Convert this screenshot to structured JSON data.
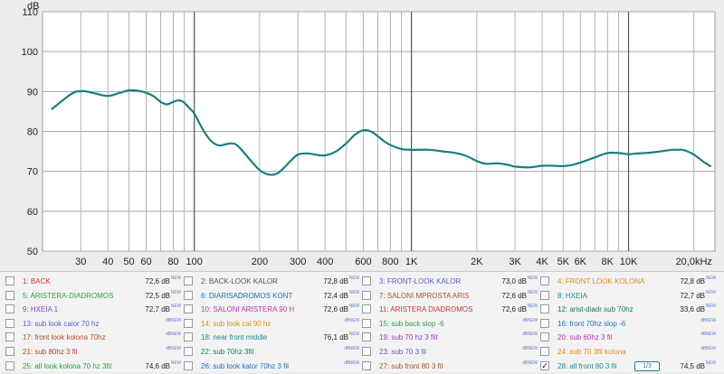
{
  "chart_data": {
    "type": "line",
    "y_unit_label": "dB",
    "x_scale": "log",
    "xlim": [
      20,
      25000
    ],
    "ylim": [
      50,
      110
    ],
    "y_ticks": [
      50,
      60,
      70,
      80,
      90,
      100,
      110
    ],
    "x_ticks": [
      {
        "value": 30,
        "label": "30"
      },
      {
        "value": 40,
        "label": "40"
      },
      {
        "value": 50,
        "label": "50"
      },
      {
        "value": 60,
        "label": "60"
      },
      {
        "value": 80,
        "label": "80"
      },
      {
        "value": 100,
        "label": "100"
      },
      {
        "value": 200,
        "label": "200"
      },
      {
        "value": 300,
        "label": "300"
      },
      {
        "value": 400,
        "label": "400"
      },
      {
        "value": 600,
        "label": "600"
      },
      {
        "value": 800,
        "label": "800"
      },
      {
        "value": 1000,
        "label": "1K"
      },
      {
        "value": 2000,
        "label": "2K"
      },
      {
        "value": 3000,
        "label": "3K"
      },
      {
        "value": 4000,
        "label": "4K"
      },
      {
        "value": 5000,
        "label": "5K"
      },
      {
        "value": 6000,
        "label": "6K"
      },
      {
        "value": 8000,
        "label": "8K"
      },
      {
        "value": 10000,
        "label": "10K"
      },
      {
        "value": 20000,
        "label": "20,0kHz"
      }
    ],
    "grid": true,
    "series": [
      {
        "color": "#1a7f82",
        "x": [
          22,
          25,
          28,
          31,
          35,
          40,
          45,
          50,
          55,
          60,
          65,
          70,
          75,
          80,
          85,
          90,
          95,
          100,
          110,
          120,
          130,
          140,
          150,
          160,
          180,
          200,
          220,
          240,
          260,
          280,
          300,
          330,
          360,
          400,
          450,
          500,
          550,
          600,
          650,
          700,
          750,
          800,
          900,
          1000,
          1200,
          1400,
          1600,
          1800,
          2000,
          2200,
          2500,
          2800,
          3000,
          3500,
          4000,
          4500,
          5000,
          5500,
          6000,
          7000,
          8000,
          9000,
          10000,
          11000,
          12000,
          14000,
          16000,
          18000,
          20000,
          22000,
          24000
        ],
        "y": [
          85.5,
          88,
          89.8,
          90.1,
          89.5,
          88.9,
          89.6,
          90.3,
          90.2,
          89.7,
          88.8,
          87.4,
          86.8,
          87.4,
          87.8,
          87.2,
          85.8,
          84.5,
          80.3,
          77.5,
          76.5,
          76.8,
          77.0,
          76.2,
          73.0,
          70.3,
          69.2,
          69.4,
          71.0,
          72.8,
          74.2,
          74.5,
          74.2,
          74.0,
          75.0,
          77.0,
          79.2,
          80.3,
          80.0,
          78.8,
          77.5,
          76.6,
          75.6,
          75.4,
          75.4,
          75.0,
          74.6,
          73.8,
          72.6,
          71.9,
          72.0,
          71.6,
          71.2,
          71.0,
          71.4,
          71.4,
          71.3,
          71.6,
          72.2,
          73.5,
          74.6,
          74.6,
          74.3,
          74.5,
          74.6,
          75.0,
          75.4,
          75.3,
          74.2,
          72.5,
          71.2
        ]
      }
    ]
  },
  "legend": {
    "items": [
      {
        "label": "1: BACK",
        "value": "72,6 dB",
        "new": "NEW",
        "color": "#c0392b",
        "checked": false
      },
      {
        "label": "2: BACK-LOOK KALOR",
        "value": "72,8 dB",
        "new": "NEW",
        "color": "#555555",
        "checked": false
      },
      {
        "label": "3: FRONT-LOOK KALOR",
        "value": "73,0 dB",
        "new": "NEW",
        "color": "#5b5bc8",
        "checked": false
      },
      {
        "label": "4: FRONT LOOK KOLONA",
        "value": "72,8 dB",
        "new": "NEW",
        "color": "#e08a1e",
        "checked": false
      },
      {
        "label": "5: ARISTERA-DIADROMOS",
        "value": "72,5 dB",
        "new": "NEW",
        "color": "#2e9e3e",
        "checked": false
      },
      {
        "label": "6: DIARISADROMOS KONT",
        "value": "72,4 dB",
        "new": "NEW",
        "color": "#1e6fb0",
        "checked": false
      },
      {
        "label": "7: SALONI MPROSTA ARIS",
        "value": "72,6 dB",
        "new": "NEW",
        "color": "#a0522d",
        "checked": false
      },
      {
        "label": "8: HXEIA",
        "value": "72,7 dB",
        "new": "NEW",
        "color": "#1a8a8c",
        "checked": false
      },
      {
        "label": "9: HXEIA 1",
        "value": "72,7 dB",
        "new": "NEW",
        "color": "#8e3fbf",
        "checked": false
      },
      {
        "label": "10: SALONI ARISTERA 90 H",
        "value": "72,6 dB",
        "new": "NEW",
        "color": "#b03aa8",
        "checked": false
      },
      {
        "label": "11: ARISTERA DIADROMOS",
        "value": "72,6 dB",
        "new": "NEW",
        "color": "#c0392b",
        "checked": false
      },
      {
        "label": "12: arist-diadr sub 70hz",
        "value": "33,6 dB",
        "new": "NEW",
        "color": "#1c7a4a",
        "checked": false
      },
      {
        "label": "13: sub look calor 70 hz",
        "value": "",
        "new": "dBNEW",
        "color": "#5b5bc8",
        "checked": false
      },
      {
        "label": "14: sub look cal 90 hz",
        "value": "",
        "new": "dBNEW",
        "color": "#e08a1e",
        "checked": false
      },
      {
        "label": "15: sub back slop -6",
        "value": "",
        "new": "dBNEW",
        "color": "#2e9e3e",
        "checked": false
      },
      {
        "label": "16: front 70hz slop -6",
        "value": "",
        "new": "dBNEW",
        "color": "#1e6fb0",
        "checked": false
      },
      {
        "label": "17: front look kolona 70hz",
        "value": "",
        "new": "dBNEW",
        "color": "#a0522d",
        "checked": false
      },
      {
        "label": "18: near front middle",
        "value": "76,1 dB",
        "new": "NEW",
        "color": "#1a8a8c",
        "checked": false
      },
      {
        "label": "19: sub 70 hz 3 filt",
        "value": "",
        "new": "dBNEW",
        "color": "#8e3fbf",
        "checked": false
      },
      {
        "label": "20: sub 60hz 3 fil",
        "value": "",
        "new": "dBNEW",
        "color": "#b03aa8",
        "checked": false
      },
      {
        "label": "21: sub 80hz 3 fil",
        "value": "",
        "new": "dBNEW",
        "color": "#c0392b",
        "checked": false
      },
      {
        "label": "22: sub 70hz 3fil",
        "value": "",
        "new": "dBNEW",
        "color": "#1c7a4a",
        "checked": false
      },
      {
        "label": "23: sub 70 3 fil",
        "value": "",
        "new": "dBNEW",
        "color": "#5b5bc8",
        "checked": false
      },
      {
        "label": "24: sub 70 3fil kolona",
        "value": "",
        "new": "dBNEW",
        "color": "#e08a1e",
        "checked": false
      },
      {
        "label": "25: all look kolona 70 hz 3fil",
        "value": "74,6 dB",
        "new": "NEW",
        "color": "#2e9e3e",
        "checked": false
      },
      {
        "label": "26: sub look kalor 70hz 3 fil",
        "value": "",
        "new": "dBNEW",
        "color": "#1e6fb0",
        "checked": false
      },
      {
        "label": "27: sub front 80 3 fil",
        "value": "",
        "new": "dBNEW",
        "color": "#a0522d",
        "checked": false
      },
      {
        "label": "28: all front 80 3 fil",
        "value": "74,5 dB",
        "new": "NEW",
        "color": "#1a8a8c",
        "checked": true,
        "filter": "1/3"
      }
    ]
  }
}
